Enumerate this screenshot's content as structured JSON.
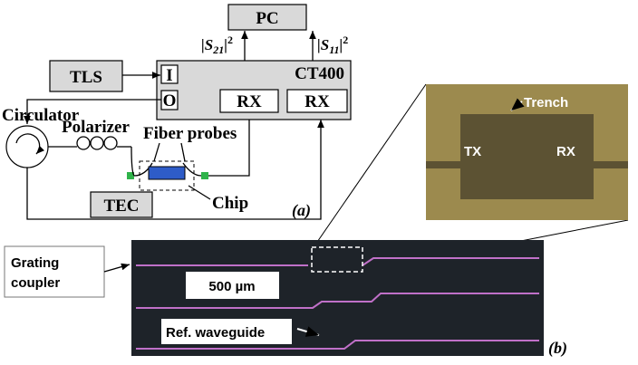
{
  "diagram_a": {
    "pc": "PC",
    "s21": {
      "left": "|S",
      "sub": "21",
      "right": "|",
      "sup": "2"
    },
    "s11": {
      "left": "|S",
      "sub": "11",
      "right": "|",
      "sup": "2"
    },
    "tls": "TLS",
    "ct400": "CT400",
    "port_i": "I",
    "port_o": "O",
    "rx1": "RX",
    "rx2": "RX",
    "circulator": "Circulator",
    "polarizer": "Polarizer",
    "fiber_probes": "Fiber probes",
    "tec": "TEC",
    "chip": "Chip",
    "label": "(a)"
  },
  "diagram_b": {
    "trench": "Trench",
    "tx": "TX",
    "rx": "RX",
    "grating_coupler": [
      "Grating",
      "coupler"
    ],
    "scale_bar": "500 µm",
    "ref_waveguide": "Ref. waveguide",
    "label": "(b)"
  }
}
